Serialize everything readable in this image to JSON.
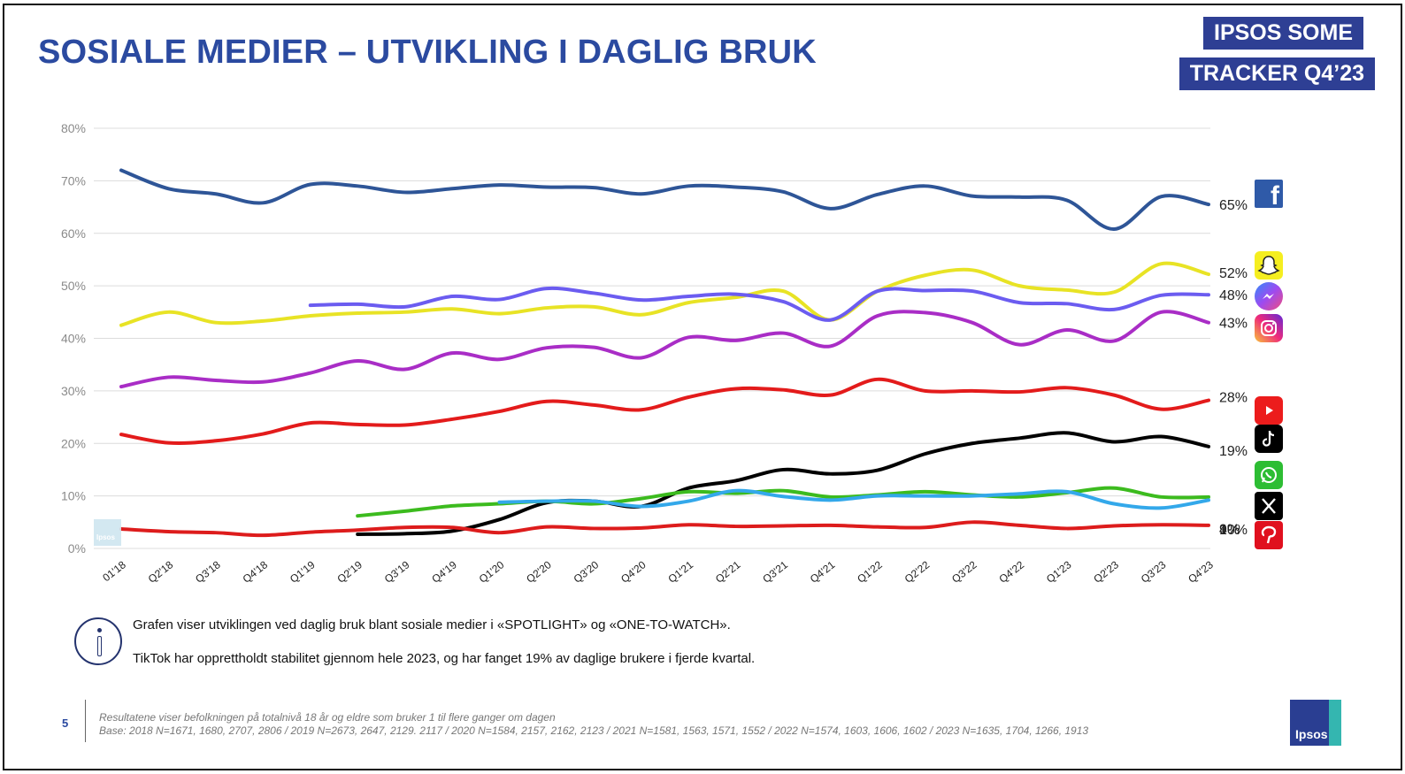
{
  "title": "SOSIALE MEDIER – UTVIKLING I DAGLIG BRUK",
  "tags": [
    "IPSOS SOME",
    "TRACKER Q4’23"
  ],
  "notes": [
    "Grafen viser utviklingen ved daglig bruk blant sosiale medier i «SPOTLIGHT» og «ONE-TO-WATCH».",
    "TikTok har opprettholdt stabilitet gjennom hele 2023, og har fanget 19% av daglige brukere i fjerde kvartal."
  ],
  "page_number": "5",
  "footnote_line1": "Resultatene viser befolkningen på totalnivå 18 år og eldre som bruker 1 til flere ganger om dagen",
  "footnote_line2": "Base: 2018 N=1671, 1680, 2707, 2806 / 2019 N=2673, 2647, 2129. 2117 / 2020 N=1584, 2157, 2162, 2123 / 2021 N=1581, 1563, 1571, 1552 / 2022 N=1574, 1603, 1606, 1602 / 2023 N=1635, 1704, 1266, 1913",
  "logo_text": "Ipsos",
  "chart_data": {
    "type": "line",
    "title": "",
    "xlabel": "",
    "ylabel": "",
    "ylim": [
      0,
      80
    ],
    "yticks": [
      "0%",
      "10%",
      "20%",
      "30%",
      "40%",
      "50%",
      "60%",
      "70%",
      "80%"
    ],
    "grid": true,
    "categories": [
      "01'18",
      "Q2'18",
      "Q3'18",
      "Q4'18",
      "Q1'19",
      "Q2'19",
      "Q3'19",
      "Q4'19",
      "Q1'20",
      "Q2'20",
      "Q3'20",
      "Q4'20",
      "Q1'21",
      "Q2'21",
      "Q3'21",
      "Q4'21",
      "Q1'22",
      "Q2'22",
      "Q3'22",
      "Q4'22",
      "Q1'23",
      "Q2'23",
      "Q3'23",
      "Q4'23"
    ],
    "series": [
      {
        "color": "#2e5597",
        "end_label": "65%",
        "icon": "facebook-icon",
        "values": [
          72,
          68.5,
          67.5,
          65.8,
          69.3,
          69,
          67.8,
          68.5,
          69.2,
          68.8,
          68.7,
          67.5,
          69,
          68.8,
          67.9,
          64.7,
          67.4,
          69,
          67.1,
          66.9,
          66.3,
          60.8,
          67,
          65.5
        ]
      },
      {
        "color": "#e8e325",
        "end_label": "52%",
        "icon": "snapchat-icon",
        "values": [
          42.5,
          45,
          43,
          43.3,
          44.3,
          44.8,
          45,
          45.6,
          44.7,
          45.8,
          46,
          44.5,
          46.8,
          47.8,
          49,
          43.5,
          49,
          52,
          53,
          50,
          49.2,
          48.8,
          54.2,
          52.2
        ]
      },
      {
        "color": "#6b5cf0",
        "end_label": "48%",
        "icon": "messenger-icon",
        "values": [
          null,
          null,
          null,
          null,
          46.3,
          46.5,
          46,
          48,
          47.4,
          49.5,
          48.6,
          47.3,
          48,
          48.4,
          47,
          43.5,
          49,
          49.1,
          49,
          46.8,
          46.6,
          45.5,
          48.2,
          48.3
        ]
      },
      {
        "color": "#a92dc6",
        "end_label": "43%",
        "icon": "instagram-icon",
        "values": [
          30.8,
          32.6,
          32,
          31.7,
          33.4,
          35.7,
          34.1,
          37.2,
          36,
          38.2,
          38.3,
          36.3,
          40.2,
          39.6,
          41,
          38.5,
          44.3,
          44.9,
          43,
          38.8,
          41.6,
          39.5,
          45,
          43
        ]
      },
      {
        "color": "#e31b1b",
        "end_label": "28%",
        "icon": "youtube-icon",
        "values": [
          21.7,
          20.1,
          20.5,
          21.8,
          23.9,
          23.6,
          23.5,
          24.6,
          26.1,
          28,
          27.3,
          26.4,
          28.8,
          30.4,
          30.2,
          29.2,
          32.2,
          30,
          30,
          29.8,
          30.6,
          29.2,
          26.5,
          28.2
        ]
      },
      {
        "color": "#000000",
        "end_label": "19%",
        "icon": "tiktok-icon",
        "values": [
          null,
          null,
          null,
          null,
          null,
          2.7,
          2.8,
          3.3,
          5.5,
          8.7,
          9,
          8,
          11.5,
          12.9,
          15,
          14.2,
          14.9,
          18,
          20,
          21,
          22,
          20.3,
          21.3,
          19.4
        ]
      },
      {
        "color": "#3cbb1e",
        "end_label": "10%",
        "icon": "whatsapp-icon",
        "values": [
          null,
          null,
          null,
          null,
          null,
          6.2,
          7.1,
          8.1,
          8.5,
          9,
          8.5,
          9.5,
          10.8,
          10.5,
          11,
          9.8,
          10.2,
          10.8,
          10.2,
          9.8,
          10.6,
          11.5,
          9.8,
          9.8
        ]
      },
      {
        "color": "#33a8ea",
        "end_label": "9%",
        "icon": "x-icon",
        "values": [
          null,
          null,
          null,
          null,
          null,
          null,
          null,
          null,
          8.8,
          9,
          9,
          8,
          9,
          11,
          9.9,
          9.2,
          10,
          10,
          10,
          10.4,
          10.8,
          8.5,
          7.7,
          9.2
        ]
      },
      {
        "color": "#dd1c1c",
        "end_label": "4%",
        "icon": "pinterest-icon",
        "values": [
          3.7,
          3.2,
          3,
          2.5,
          3.1,
          3.5,
          4,
          4,
          3,
          4.1,
          3.8,
          3.9,
          4.5,
          4.2,
          4.3,
          4.4,
          4.1,
          4,
          5,
          4.4,
          3.8,
          4.3,
          4.5,
          4.4
        ]
      }
    ]
  }
}
